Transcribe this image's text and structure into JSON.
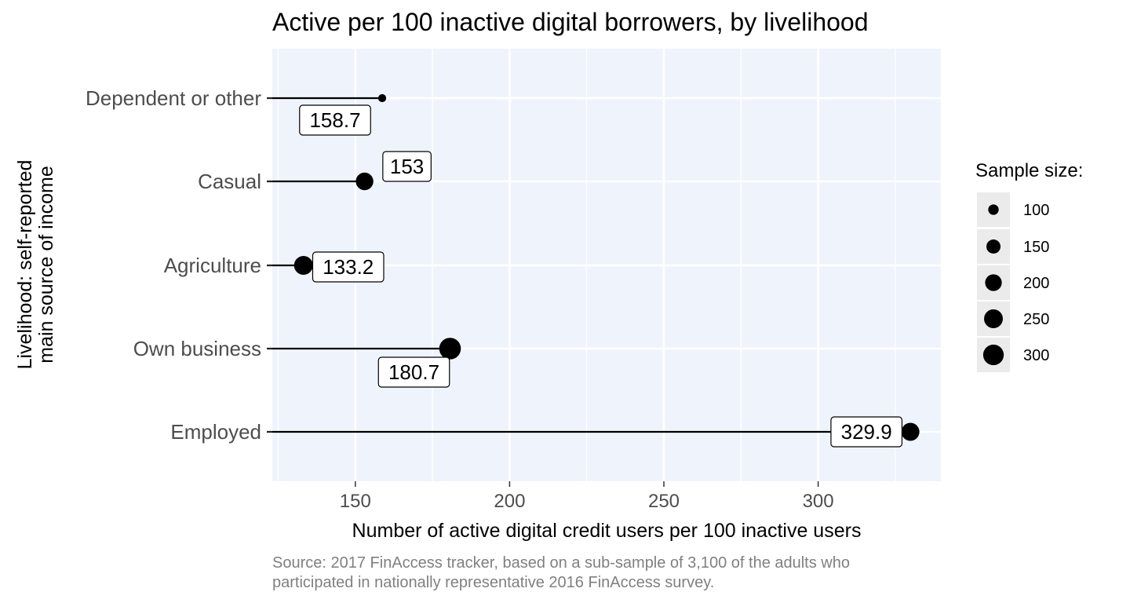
{
  "chart_data": {
    "type": "lollipop",
    "title": "Active per 100 inactive digital borrowers, by livelihood",
    "xlabel": "Number of active digital credit users per 100 inactive users",
    "ylabel_lines": [
      "Livelihood: self-reported",
      "main source of income"
    ],
    "xlim": [
      123,
      340
    ],
    "xticks": [
      150,
      200,
      250,
      300
    ],
    "categories": [
      "Dependent or other",
      "Casual",
      "Agriculture",
      "Own business",
      "Employed"
    ],
    "values": [
      158.7,
      153,
      133.2,
      180.7,
      329.9
    ],
    "labels": [
      "158.7",
      "153",
      "133.2",
      "180.7",
      "329.9"
    ],
    "sample_sizes": [
      80,
      220,
      250,
      330,
      230
    ],
    "legend": {
      "title": "Sample size:",
      "entries": [
        100,
        150,
        200,
        250,
        300
      ],
      "labels": [
        "100",
        "150",
        "200",
        "250",
        "300"
      ]
    },
    "caption_lines": [
      "Source: 2017 FinAccess tracker, based on a sub-sample of 3,100 of the adults who",
      "participated in nationally representative 2016 FinAccess survey."
    ],
    "grid": true,
    "panel_color": "#eff4fc",
    "grid_color": "#ffffff",
    "point_color": "#000000",
    "caption_color": "#808080"
  }
}
